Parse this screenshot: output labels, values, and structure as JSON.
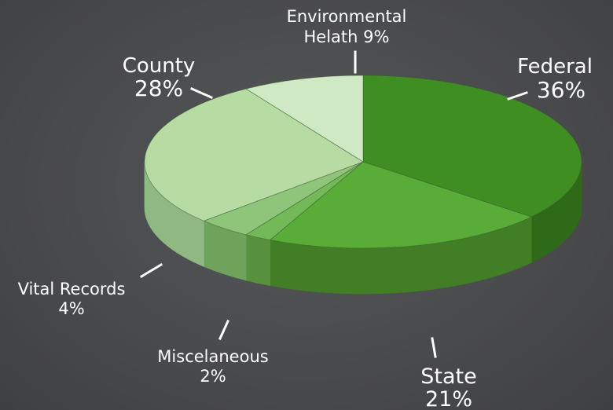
{
  "chart_data": {
    "type": "pie",
    "style": "3d",
    "title": "",
    "legend": "none",
    "categories": [
      "Federal",
      "State",
      "Miscelaneous",
      "Vital Records",
      "County",
      "Environmental Helath"
    ],
    "values": [
      36,
      21,
      2,
      4,
      28,
      9
    ],
    "labels": [
      {
        "name": "Federal",
        "pct": "36%"
      },
      {
        "name": "State",
        "pct": "21%"
      },
      {
        "name": "Miscelaneous",
        "pct": "2%"
      },
      {
        "name": "Vital Records",
        "pct": "4%"
      },
      {
        "name": "County",
        "pct": "28%"
      },
      {
        "name": "Environmental",
        "name2": "Helath 9%"
      }
    ],
    "colors": [
      "#3e8e22",
      "#5aac38",
      "#73b959",
      "#8ec57a",
      "#b6dca4",
      "#cfe9c4"
    ],
    "side_colors": [
      "#2e6a18",
      "#417e25",
      "#58923f",
      "#6fa25a",
      "#90b883",
      "#a6c99b"
    ],
    "background": "#4a4b4d"
  }
}
